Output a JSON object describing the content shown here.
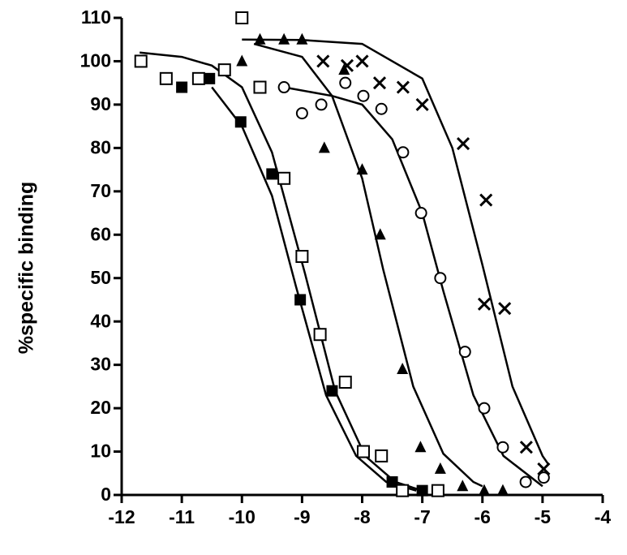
{
  "chart_data": {
    "type": "scatter",
    "ylabel": "%specific binding",
    "xlim": [
      -12,
      -4
    ],
    "ylim": [
      0,
      110
    ],
    "xticks": [
      -12,
      -11,
      -10,
      -9,
      -8,
      -7,
      -6,
      -5,
      -4
    ],
    "yticks": [
      0,
      10,
      20,
      30,
      40,
      50,
      60,
      70,
      80,
      90,
      100,
      110
    ],
    "series": [
      {
        "marker": "filled-square",
        "color": "#000000",
        "x": [
          -11.0,
          -10.54,
          -10.02,
          -9.5,
          -9.03,
          -8.5,
          -7.5,
          -7.0
        ],
        "values": [
          94,
          96,
          86,
          74,
          45,
          24,
          3,
          1
        ],
        "fit_x": [
          -10.5,
          -10,
          -9.5,
          -9.1,
          -8.6,
          -8.1,
          -7.6,
          -7.1
        ],
        "fit_values": [
          94,
          85,
          69,
          48,
          23,
          9,
          3,
          1
        ]
      },
      {
        "marker": "open-square",
        "color": "#000000",
        "x": [
          -11.68,
          -11.26,
          -10.72,
          -10.29,
          -10.0,
          -9.7,
          -9.3,
          -9.0,
          -8.7,
          -8.28,
          -7.98,
          -7.68,
          -7.33,
          -6.74
        ],
        "values": [
          100,
          96,
          96,
          98,
          110,
          94,
          73,
          55,
          37,
          26,
          10,
          9,
          1,
          1
        ],
        "fit_x": [
          -11.7,
          -11,
          -10.5,
          -10,
          -9.5,
          -8.95,
          -8.45,
          -7.95,
          -7.45,
          -7.0
        ],
        "fit_values": [
          102,
          101,
          99,
          94,
          79,
          51,
          24,
          9,
          3,
          1
        ]
      },
      {
        "marker": "triangle",
        "color": "#000000",
        "x": [
          -10.0,
          -9.7,
          -9.3,
          -9.0,
          -8.3,
          -8.63,
          -8.0,
          -7.7,
          -7.33,
          -7.03,
          -6.7,
          -6.33,
          -5.97,
          -5.66
        ],
        "values": [
          100,
          105,
          105,
          105,
          98,
          80,
          75,
          60,
          29,
          11,
          6,
          2,
          1,
          1
        ],
        "fit_x": [
          -9.8,
          -9,
          -8.5,
          -8,
          -7.65,
          -7.15,
          -6.65,
          -6.15,
          -6.0
        ],
        "fit_values": [
          104,
          101,
          92,
          73,
          52,
          25,
          9.5,
          3,
          2
        ]
      },
      {
        "marker": "circle",
        "color": "#000000",
        "x": [
          -9.3,
          -9.0,
          -8.68,
          -8.28,
          -7.98,
          -7.68,
          -7.32,
          -7.02,
          -6.7,
          -6.29,
          -5.97,
          -5.66,
          -5.28,
          -4.98
        ],
        "values": [
          94,
          88,
          90,
          95,
          92,
          89,
          79,
          65,
          50,
          33,
          20,
          11,
          3,
          4
        ],
        "fit_x": [
          -9.3,
          -8.5,
          -8,
          -7.5,
          -7,
          -6.65,
          -6.15,
          -5.65,
          -5.0
        ],
        "fit_values": [
          94,
          92,
          90,
          82,
          65,
          47,
          23,
          9,
          2
        ]
      },
      {
        "marker": "cross",
        "color": "#000000",
        "x": [
          -8.65,
          -8.25,
          -8.0,
          -7.71,
          -7.32,
          -7.0,
          -6.32,
          -5.94,
          -5.97,
          -5.63,
          -5.27,
          -4.98
        ],
        "values": [
          100,
          99,
          100,
          95,
          94,
          90,
          81,
          68,
          44,
          43,
          11,
          6
        ],
        "fit_x": [
          -10,
          -9,
          -8,
          -7,
          -6.5,
          -6,
          -5.5,
          -5,
          -4.9
        ],
        "fit_values": [
          105,
          104.9,
          104,
          96,
          80,
          53,
          25,
          9,
          7
        ]
      }
    ]
  }
}
